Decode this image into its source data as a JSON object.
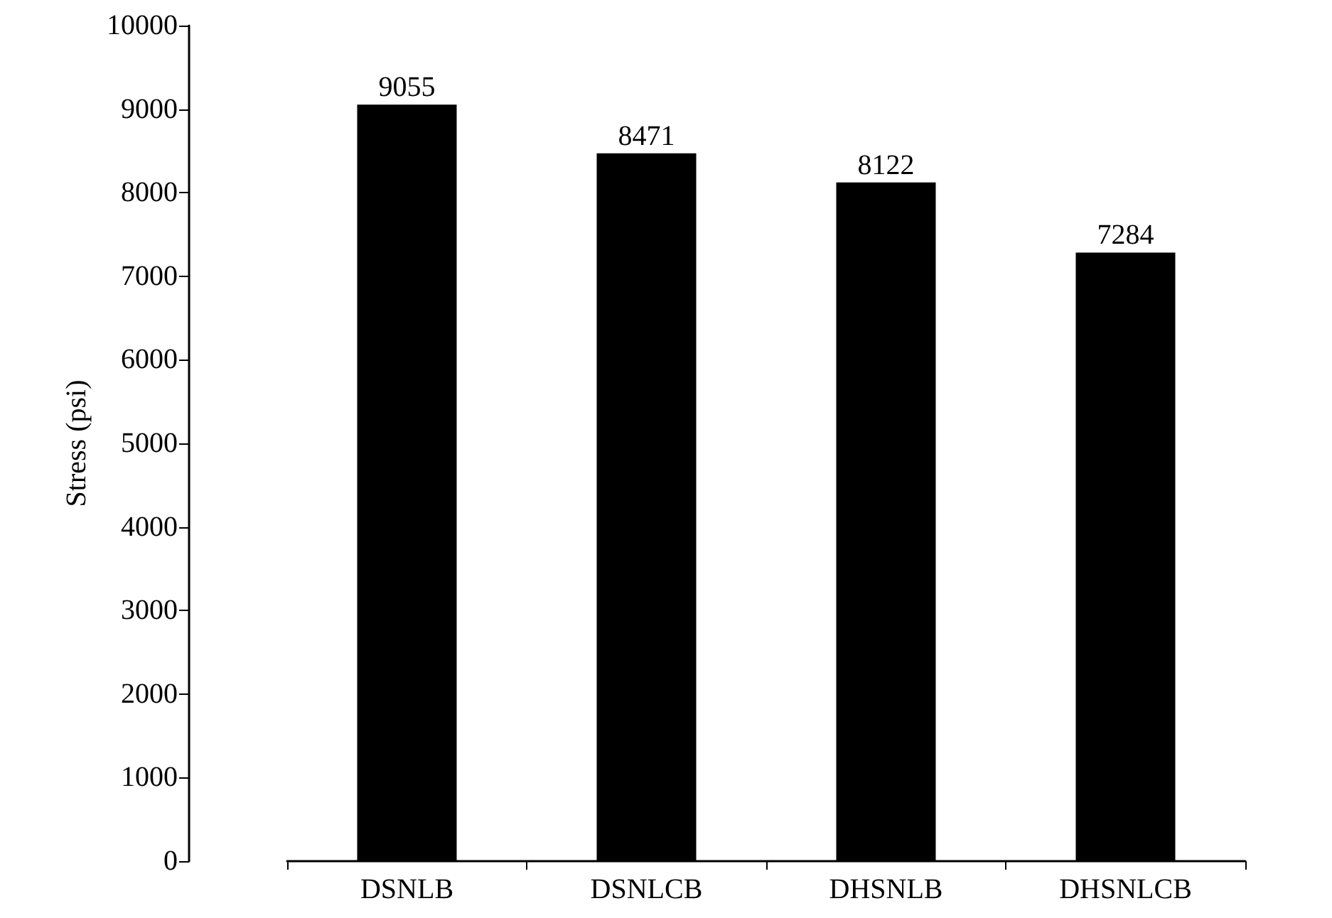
{
  "chart_data": {
    "type": "bar",
    "ylabel": "Stress (psi)",
    "categories": [
      "DSNLB",
      "DSNLCB",
      "DHSNLB",
      "DHSNLCB"
    ],
    "values": [
      9055,
      8471,
      8122,
      7284
    ],
    "color": "#000000",
    "ylim": [
      0,
      10000
    ],
    "yticks": [
      0,
      1000,
      2000,
      3000,
      4000,
      5000,
      6000,
      7000,
      8000,
      9000,
      10000
    ],
    "grid": false,
    "data_labels": true
  }
}
